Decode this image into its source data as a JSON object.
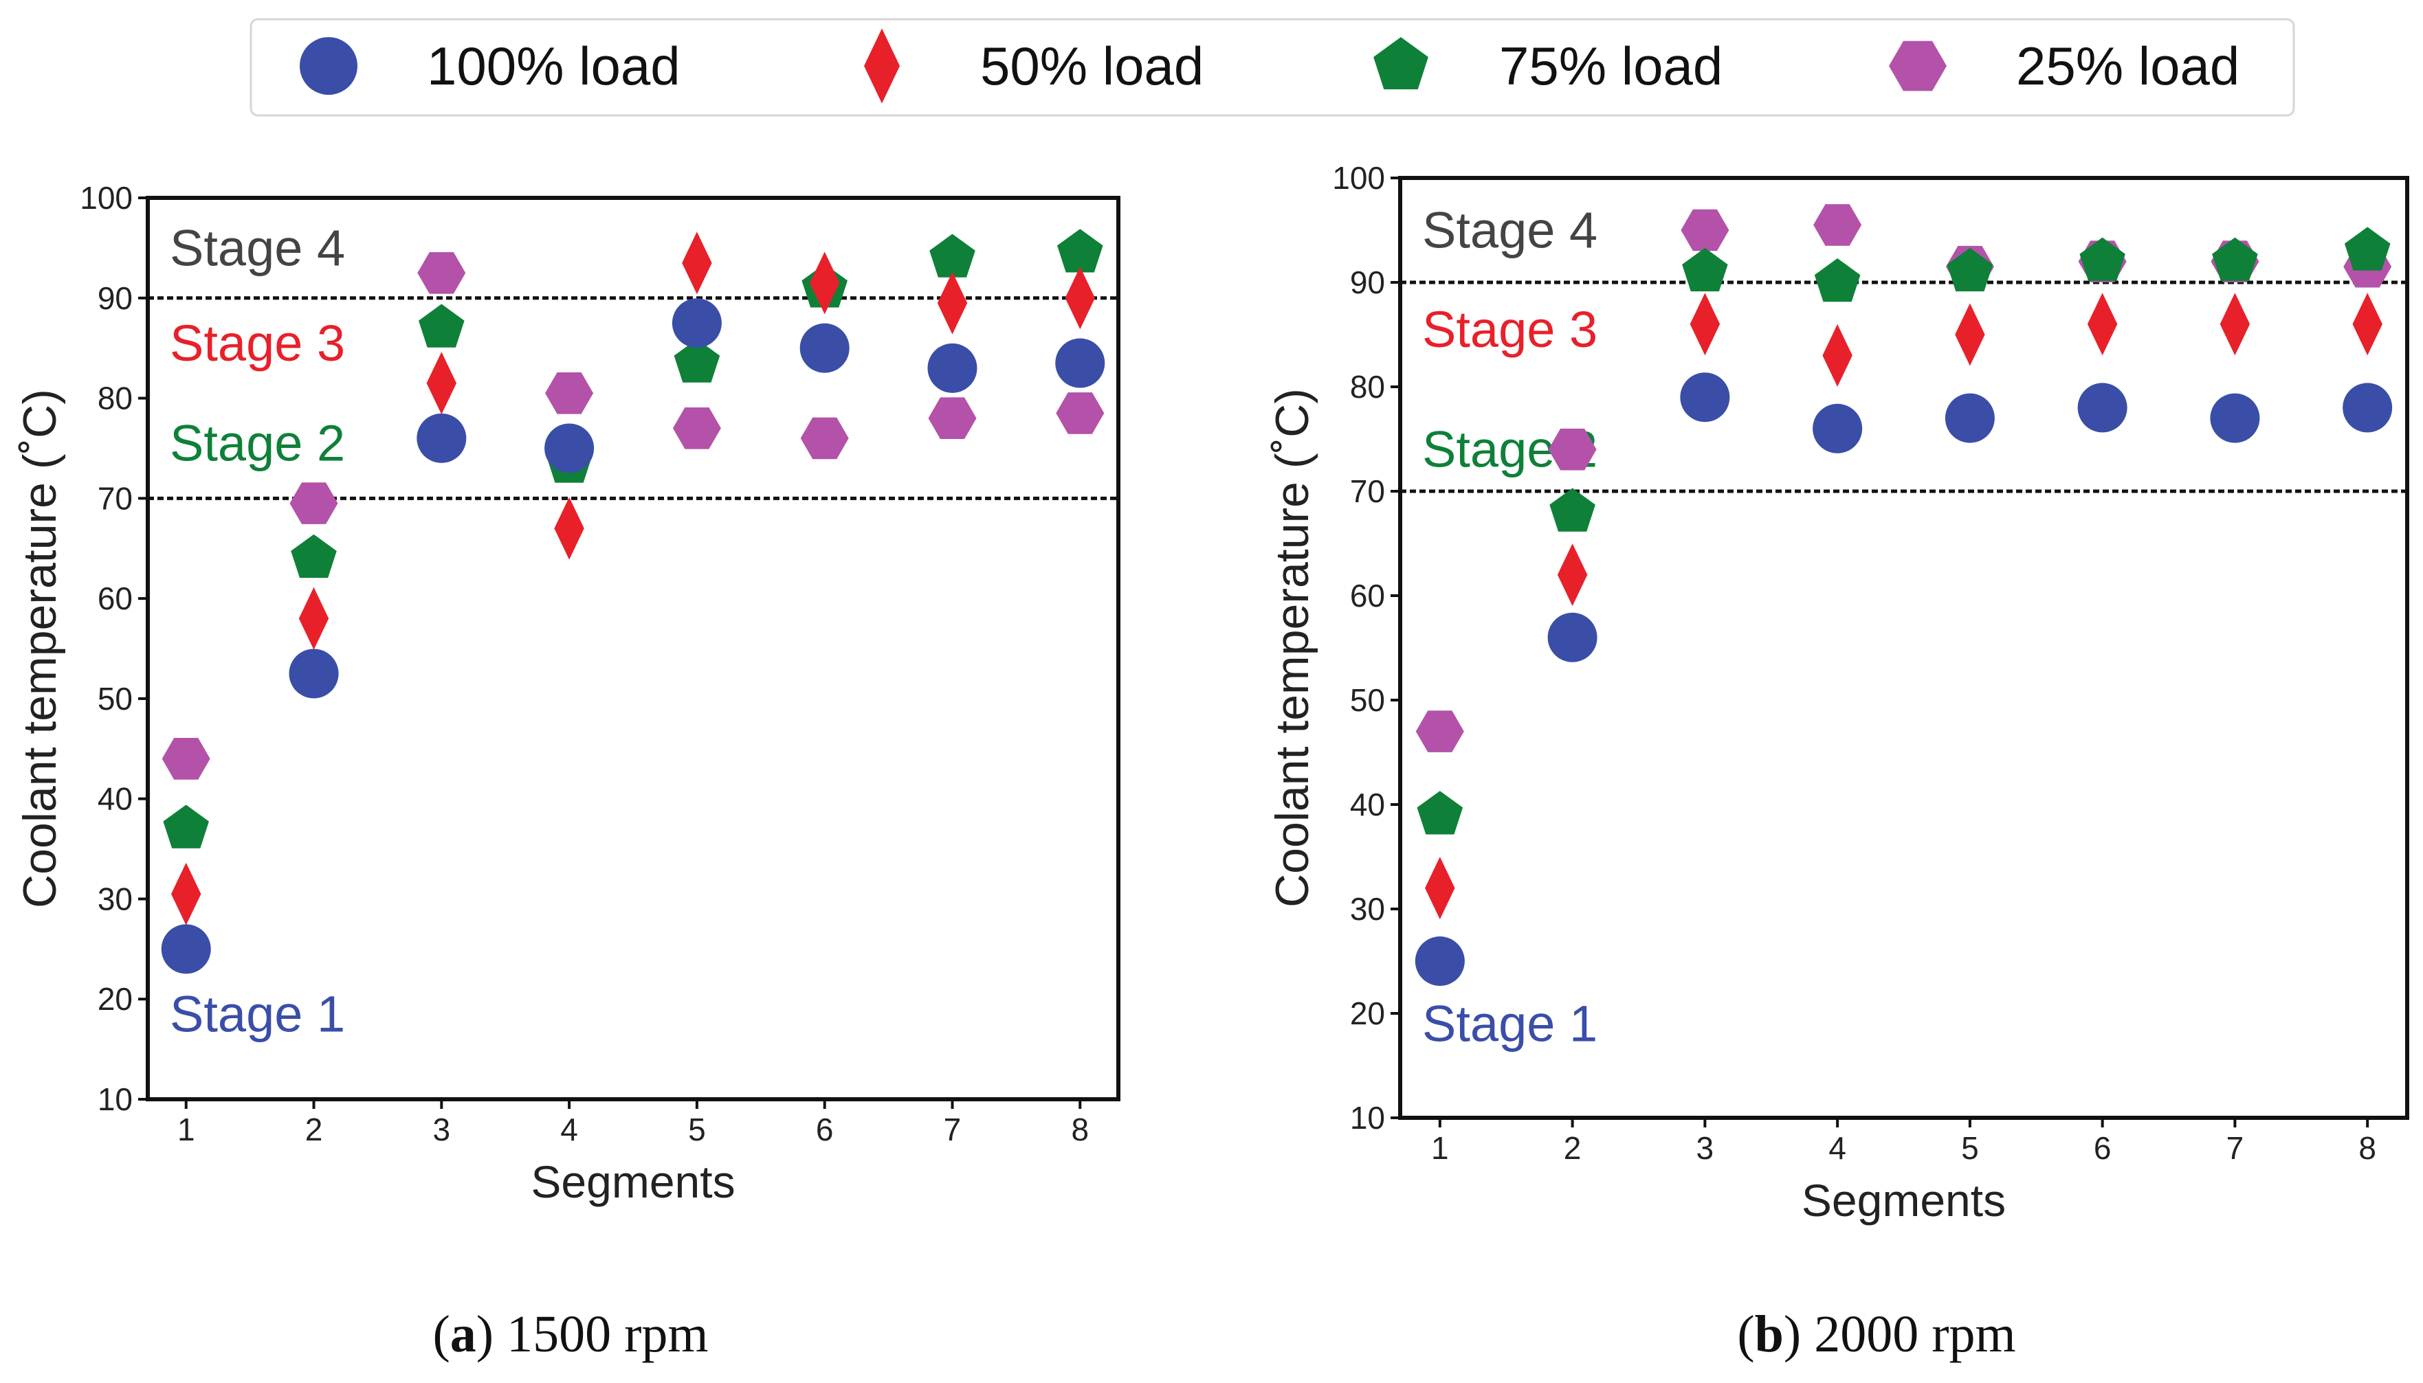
{
  "legend": {
    "entries": [
      {
        "series": "100% load",
        "label": "100% load"
      },
      {
        "series": "50% load",
        "label": "50% load"
      },
      {
        "series": "75% load",
        "label": "75% load"
      },
      {
        "series": "25% load",
        "label": "25% load"
      }
    ]
  },
  "series_styles": {
    "100% load": {
      "marker": "circle",
      "color": "#3A4EA8"
    },
    "50% load": {
      "marker": "diamond",
      "color": "#E8202A"
    },
    "75% load": {
      "marker": "pentagon",
      "color": "#0E8038"
    },
    "25% load": {
      "marker": "hexagon",
      "color": "#B352A8"
    }
  },
  "chart_data": [
    {
      "type": "scatter",
      "panel": "a",
      "caption_letter": "a",
      "caption_text": "1500 rpm",
      "xlabel": "Segments",
      "ylabel": "Coolant temperature (˚C)",
      "x": [
        1,
        2,
        3,
        4,
        5,
        6,
        7,
        8
      ],
      "xlim": [
        0.7,
        8.3
      ],
      "ylim": [
        10,
        100
      ],
      "yticks": [
        10,
        20,
        30,
        40,
        50,
        60,
        70,
        80,
        90,
        100
      ],
      "hlines": [
        70,
        90
      ],
      "stage_labels": [
        {
          "text": "Stage 4",
          "y": 95,
          "color": "#444444"
        },
        {
          "text": "Stage 3",
          "y": 85.5,
          "color": "#E8202A"
        },
        {
          "text": "Stage 2",
          "y": 75.5,
          "color": "#0E8038"
        },
        {
          "text": "Stage 1",
          "y": 18.5,
          "color": "#3A4EA8"
        }
      ],
      "series": [
        {
          "name": "25% load",
          "values": [
            44,
            69.5,
            92.5,
            80.5,
            77,
            76,
            78,
            78.5
          ]
        },
        {
          "name": "75% load",
          "values": [
            37,
            64,
            87,
            73.5,
            83.5,
            91,
            94,
            94.5
          ]
        },
        {
          "name": "50% load",
          "values": [
            30.5,
            58,
            81.5,
            67,
            93.5,
            91.5,
            89.5,
            90
          ]
        },
        {
          "name": "100% load",
          "values": [
            25,
            52.5,
            76,
            75,
            87.5,
            85,
            83,
            83.5
          ]
        }
      ]
    },
    {
      "type": "scatter",
      "panel": "b",
      "caption_letter": "b",
      "caption_text": "2000 rpm",
      "xlabel": "Segments",
      "ylabel": "Coolant temperature (˚C)",
      "x": [
        1,
        2,
        3,
        4,
        5,
        6,
        7,
        8
      ],
      "xlim": [
        0.7,
        8.3
      ],
      "ylim": [
        10,
        100
      ],
      "yticks": [
        10,
        20,
        30,
        40,
        50,
        60,
        70,
        80,
        90,
        100
      ],
      "hlines": [
        70,
        90
      ],
      "stage_labels": [
        {
          "text": "Stage 4",
          "y": 95,
          "color": "#444444"
        },
        {
          "text": "Stage 3",
          "y": 85.5,
          "color": "#E8202A"
        },
        {
          "text": "Stage 2",
          "y": 74,
          "color": "#0E8038"
        },
        {
          "text": "Stage 1",
          "y": 19,
          "color": "#3A4EA8"
        }
      ],
      "series": [
        {
          "name": "25% load",
          "values": [
            47,
            74,
            95,
            95.5,
            91.5,
            92,
            92,
            91.5
          ]
        },
        {
          "name": "75% load",
          "values": [
            39,
            68,
            91,
            90,
            91,
            92,
            92,
            93
          ]
        },
        {
          "name": "50% load",
          "values": [
            32,
            62,
            86,
            83,
            85,
            86,
            86,
            86
          ]
        },
        {
          "name": "100% load",
          "values": [
            25,
            56,
            79,
            76,
            77,
            78,
            77,
            78
          ]
        }
      ]
    }
  ]
}
